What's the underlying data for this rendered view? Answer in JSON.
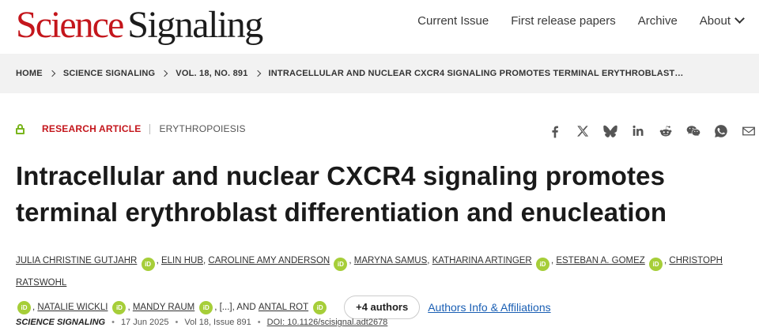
{
  "header": {
    "logo_science": "Science",
    "logo_signaling": "Signaling",
    "nav": [
      "Current Issue",
      "First release papers",
      "Archive",
      "About"
    ]
  },
  "breadcrumb": [
    "HOME",
    "SCIENCE SIGNALING",
    "VOL. 18, NO. 891",
    "INTRACELLULAR AND NUCLEAR CXCR4 SIGNALING PROMOTES TERMINAL ERYTHROBLAST…"
  ],
  "article": {
    "type": "RESEARCH ARTICLE",
    "subject": "ERYTHROPOIESIS",
    "title": "Intracellular and nuclear CXCR4 signaling promotes terminal erythroblast differentiation and enucleation",
    "authors": [
      "Julia Christine Gutjahr",
      "Elin Hub",
      "Caroline Amy Anderson",
      "Maryna Samus",
      "Katharina Artinger",
      "Esteban A. Gomez",
      "Christoph Ratswohl",
      "Natalie Wickli",
      "Mandy Raum",
      "Antal Rot"
    ],
    "ellipsis": "[...]",
    "and_text": ", AND",
    "more_authors": "+4 authors",
    "affiliations_link": "Authors Info & Affiliations",
    "orcid_label": "iD"
  },
  "citation": {
    "journal": "SCIENCE SIGNALING",
    "date": "17 Jun 2025",
    "volume": "Vol 18, Issue 891",
    "doi": "DOI: 10.1126/scisignal.adt2678"
  },
  "share_icons": [
    "facebook-icon",
    "x-icon",
    "bluesky-icon",
    "linkedin-icon",
    "reddit-icon",
    "wechat-icon",
    "whatsapp-icon",
    "email-icon"
  ],
  "colors": {
    "brand_red": "#c4161c",
    "orcid_green": "#a6ce39",
    "link_blue": "#1a5fb4"
  }
}
